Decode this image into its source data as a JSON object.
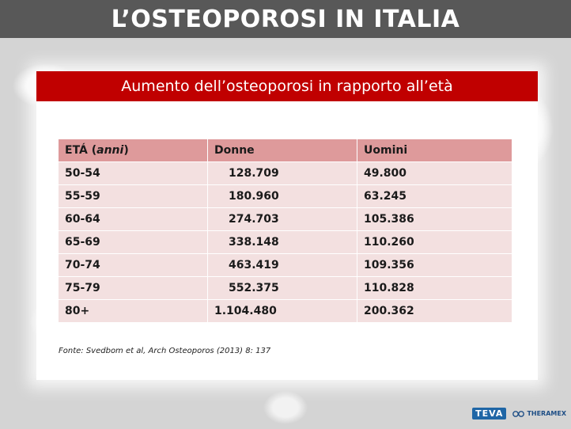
{
  "slide": {
    "title": "L’OSTEOPOROSI IN ITALIA",
    "card_title": "Aumento dell’osteoporosi in rapporto all’età"
  },
  "table": {
    "headers": {
      "col1_prefix": "ETÁ (",
      "col1_italic": "anni",
      "col1_suffix": ")",
      "col2": "Donne",
      "col3": "Uomini"
    },
    "rows": [
      {
        "age": "50-54",
        "donne": "128.709",
        "uomini": "49.800"
      },
      {
        "age": "55-59",
        "donne": "180.960",
        "uomini": "63.245"
      },
      {
        "age": "60-64",
        "donne": "274.703",
        "uomini": "105.386"
      },
      {
        "age": "65-69",
        "donne": "338.148",
        "uomini": "110.260"
      },
      {
        "age": "70-74",
        "donne": "463.419",
        "uomini": "109.356"
      },
      {
        "age": "75-79",
        "donne": "552.375",
        "uomini": "110.828"
      },
      {
        "age": "80+",
        "donne": "1.104.480",
        "uomini": "200.362"
      }
    ]
  },
  "source": "Fonte: Svedbom et al, Arch Osteoporos (2013) 8: 137",
  "logos": {
    "teva": "TEVA",
    "theramex": "THERAMEX"
  },
  "colors": {
    "title_bar": "#585858",
    "card_header": "#c00000",
    "table_header": "#de9a9b",
    "table_row": "#f3e0e0"
  }
}
